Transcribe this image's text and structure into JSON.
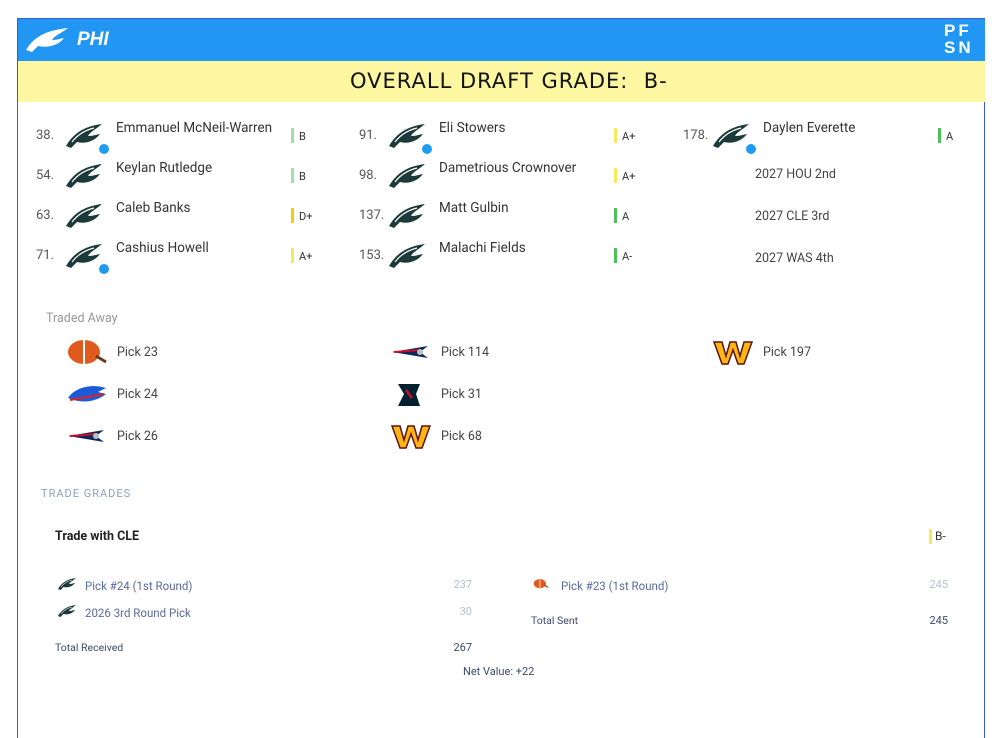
{
  "header": {
    "team": "PHI",
    "brand": "PFSN",
    "title": "OVERALL DRAFT GRADE:",
    "grade": "B-"
  },
  "picks": [
    {
      "number": "38.",
      "name": "Emmanuel McNeil-Warren",
      "grade": "B",
      "color": "#9fe0a8"
    },
    {
      "number": "54.",
      "name": "Keylan Rutledge",
      "grade": "B",
      "color": "#9fe0a8"
    },
    {
      "number": "63.",
      "name": "Caleb Banks",
      "grade": "D+",
      "color": "#f2d100"
    },
    {
      "number": "71.",
      "name": "Cashius Howell",
      "grade": "A+",
      "color": "#f7ea5a"
    },
    {
      "number": "91.",
      "name": "Eli Stowers",
      "grade": "A+",
      "color": "#f7ea5a"
    },
    {
      "number": "98.",
      "name": "Dametrious Crownover",
      "grade": "A+",
      "color": "#f7ea5a"
    },
    {
      "number": "137.",
      "name": "Matt Gulbin",
      "grade": "A",
      "color": "#4cc25a"
    },
    {
      "number": "153.",
      "name": "Malachi Fields",
      "grade": "A-",
      "color": "#4cc25a"
    },
    {
      "number": "178.",
      "name": "Daylen Everette",
      "grade": "A",
      "color": "#4cc25a"
    }
  ],
  "future_picks": [
    "2027 HOU 2nd",
    "2027 CLE 3rd",
    "2027 WAS 4th"
  ],
  "traded_away": {
    "label": "Traded Away",
    "items": [
      {
        "team": "CLE",
        "pick": "Pick 23"
      },
      {
        "team": "BUF",
        "pick": "Pick 24"
      },
      {
        "team": "NE",
        "pick": "Pick 26"
      },
      {
        "team": "NE",
        "pick": "Pick 114"
      },
      {
        "team": "HOU",
        "pick": "Pick 31"
      },
      {
        "team": "WAS",
        "pick": "Pick 68"
      },
      {
        "team": "WAS",
        "pick": "Pick 197"
      }
    ]
  },
  "trade_grades": {
    "label": "TRADE GRADES",
    "trade": "Trade with CLE",
    "grade": "B-",
    "received": [
      {
        "asset": "Pick #24 (1st Round)",
        "value": 237
      },
      {
        "asset": "2026 3rd Round Pick",
        "value": 30
      }
    ],
    "received_total_label": "Total Received",
    "received_total": 267,
    "sent": [
      {
        "asset": "Pick #23 (1st Round)",
        "value": 245
      }
    ],
    "sent_total_label": "Total Sent",
    "sent_total": 245,
    "net": "Net Value: +22"
  }
}
